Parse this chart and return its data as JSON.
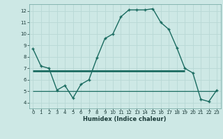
{
  "xlabel": "Humidex (Indice chaleur)",
  "bg_color": "#cde8e5",
  "grid_color": "#b8d8d5",
  "line_color": "#1a6b60",
  "main_x": [
    0,
    1,
    2,
    3,
    4,
    5,
    6,
    7,
    8,
    9,
    10,
    11,
    12,
    13,
    14,
    15,
    16,
    17,
    18,
    19,
    20,
    21,
    22,
    23
  ],
  "main_y": [
    8.7,
    7.2,
    7.0,
    5.1,
    5.5,
    4.4,
    5.6,
    6.0,
    7.9,
    9.6,
    10.0,
    11.5,
    12.1,
    12.1,
    12.1,
    12.2,
    11.0,
    10.4,
    8.8,
    7.0,
    6.6,
    4.3,
    4.1,
    5.1
  ],
  "hline1_y": 6.8,
  "hline1_xstart": 0,
  "hline1_xend": 19,
  "hline2_y": 5.0,
  "hline2_xstart": 0,
  "hline2_xend": 23,
  "xlim": [
    -0.5,
    23.5
  ],
  "ylim": [
    3.5,
    12.6
  ],
  "yticks": [
    4,
    5,
    6,
    7,
    8,
    9,
    10,
    11,
    12
  ],
  "xticks": [
    0,
    1,
    2,
    3,
    4,
    5,
    6,
    7,
    8,
    9,
    10,
    11,
    12,
    13,
    14,
    15,
    16,
    17,
    18,
    19,
    20,
    21,
    22,
    23
  ],
  "tick_fontsize": 5.0,
  "xlabel_fontsize": 6.0
}
